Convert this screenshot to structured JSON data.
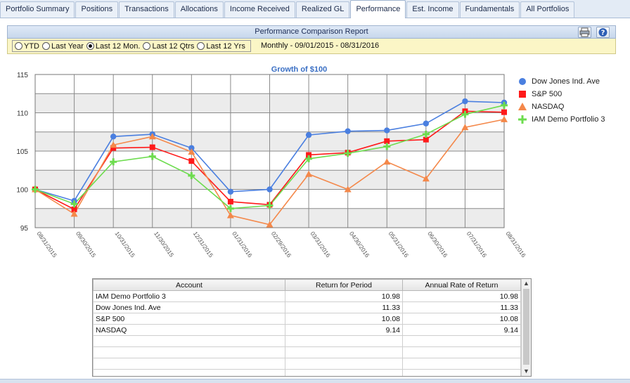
{
  "tabs": [
    {
      "label": "Portfolio Summary",
      "active": false
    },
    {
      "label": "Positions",
      "active": false
    },
    {
      "label": "Transactions",
      "active": false
    },
    {
      "label": "Allocations",
      "active": false
    },
    {
      "label": "Income Received",
      "active": false
    },
    {
      "label": "Realized GL",
      "active": false
    },
    {
      "label": "Performance",
      "active": true
    },
    {
      "label": "Est. Income",
      "active": false
    },
    {
      "label": "Fundamentals",
      "active": false
    },
    {
      "label": "All Portfolios",
      "active": false
    }
  ],
  "report": {
    "title": "Performance Comparison Report",
    "print_icon": "printer-icon",
    "help_icon": "help-icon"
  },
  "options": {
    "radios": [
      {
        "label": "YTD",
        "checked": false
      },
      {
        "label": "Last Year",
        "checked": false
      },
      {
        "label": "Last 12 Mon.",
        "checked": true
      },
      {
        "label": "Last 12 Qtrs",
        "checked": false
      },
      {
        "label": "Last 12 Yrs",
        "checked": false
      }
    ],
    "period_text": "Monthly - 09/01/2015 - 08/31/2016"
  },
  "chart_data": {
    "type": "line",
    "title": "Growth of $100",
    "xlabel": "",
    "ylabel": "",
    "ylim": [
      95,
      115
    ],
    "yticks": [
      95,
      100,
      105,
      110,
      115
    ],
    "grid": true,
    "legend_position": "right",
    "x": [
      "08/31/2015",
      "09/30/2015",
      "10/31/2015",
      "11/30/2015",
      "12/31/2015",
      "01/31/2016",
      "02/29/2016",
      "03/31/2016",
      "04/30/2016",
      "05/31/2016",
      "06/30/2016",
      "07/31/2016",
      "08/31/2016"
    ],
    "series": [
      {
        "name": "Dow Jones Ind. Ave",
        "color": "#4a7fe0",
        "marker": "circle",
        "values": [
          100.0,
          98.5,
          106.9,
          107.2,
          105.4,
          99.7,
          100.0,
          107.1,
          107.6,
          107.7,
          108.6,
          111.5,
          111.33
        ]
      },
      {
        "name": "S&P 500",
        "color": "#ff1a1a",
        "marker": "square",
        "values": [
          100.0,
          97.4,
          105.4,
          105.5,
          103.7,
          98.4,
          98.0,
          104.5,
          104.8,
          106.3,
          106.5,
          110.2,
          110.08
        ]
      },
      {
        "name": "NASDAQ",
        "color": "#f4884a",
        "marker": "triangle",
        "values": [
          100.0,
          96.8,
          105.8,
          106.9,
          104.9,
          96.6,
          95.4,
          102.0,
          100.0,
          103.6,
          101.4,
          108.1,
          109.14
        ]
      },
      {
        "name": "IAM Demo Portfolio 3",
        "color": "#6ddc4e",
        "marker": "plus",
        "values": [
          100.0,
          98.1,
          103.6,
          104.3,
          101.8,
          97.5,
          97.9,
          104.0,
          104.7,
          105.6,
          107.2,
          109.8,
          110.98
        ]
      }
    ]
  },
  "table": {
    "columns": [
      "Account",
      "Return for Period",
      "Annual Rate of Return"
    ],
    "rows": [
      [
        "IAM Demo Portfolio 3",
        "10.98",
        "10.98"
      ],
      [
        "Dow Jones Ind. Ave",
        "11.33",
        "11.33"
      ],
      [
        "S&P 500",
        "10.08",
        "10.08"
      ],
      [
        "NASDAQ",
        "9.14",
        "9.14"
      ],
      [
        "",
        "",
        ""
      ],
      [
        "",
        "",
        ""
      ],
      [
        "",
        "",
        ""
      ],
      [
        "",
        "",
        ""
      ]
    ]
  }
}
